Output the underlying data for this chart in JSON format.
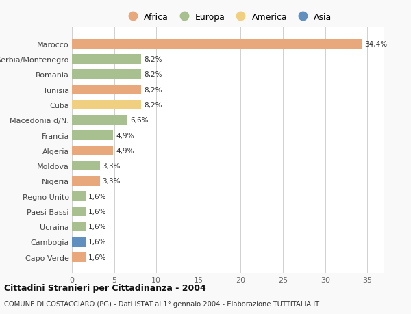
{
  "countries": [
    "Capo Verde",
    "Cambogia",
    "Ucraina",
    "Paesi Bassi",
    "Regno Unito",
    "Nigeria",
    "Moldova",
    "Algeria",
    "Francia",
    "Macedonia d/N.",
    "Cuba",
    "Tunisia",
    "Romania",
    "Serbia/Montenegro",
    "Marocco"
  ],
  "values": [
    1.6,
    1.6,
    1.6,
    1.6,
    1.6,
    3.3,
    3.3,
    4.9,
    4.9,
    6.6,
    8.2,
    8.2,
    8.2,
    8.2,
    34.4
  ],
  "labels": [
    "1,6%",
    "1,6%",
    "1,6%",
    "1,6%",
    "1,6%",
    "3,3%",
    "3,3%",
    "4,9%",
    "4,9%",
    "6,6%",
    "8,2%",
    "8,2%",
    "8,2%",
    "8,2%",
    "34,4%"
  ],
  "continents": [
    "Africa",
    "Asia",
    "Europa",
    "Europa",
    "Europa",
    "Africa",
    "Europa",
    "Africa",
    "Europa",
    "Europa",
    "America",
    "Africa",
    "Europa",
    "Europa",
    "Africa"
  ],
  "colors": {
    "Africa": "#E8A87C",
    "Europa": "#A8C090",
    "America": "#F0D080",
    "Asia": "#6090C0"
  },
  "legend_order": [
    "Africa",
    "Europa",
    "America",
    "Asia"
  ],
  "legend_colors": [
    "#E8A87C",
    "#A8C090",
    "#F0D080",
    "#6090C0"
  ],
  "title": "Cittadini Stranieri per Cittadinanza - 2004",
  "subtitle": "COMUNE DI COSTACCIARO (PG) - Dati ISTAT al 1° gennaio 2004 - Elaborazione TUTTITALIA.IT",
  "xlim": [
    0,
    37
  ],
  "xticks": [
    0,
    5,
    10,
    15,
    20,
    25,
    30,
    35
  ],
  "background_color": "#f9f9f9",
  "bar_background": "#ffffff"
}
